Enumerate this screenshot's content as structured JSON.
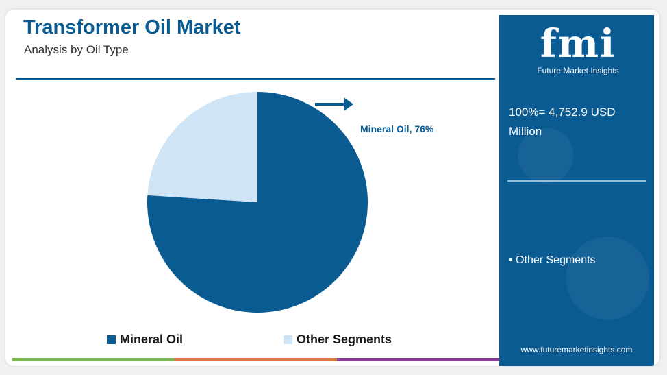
{
  "header": {
    "title": "Transformer Oil Market",
    "subtitle": "Analysis by Oil Type"
  },
  "chart_data": {
    "type": "pie",
    "title": "Transformer Oil Market",
    "subtitle": "Analysis by Oil Type",
    "slices": [
      {
        "label": "Mineral Oil",
        "value": 76,
        "color": "#0b5b93"
      },
      {
        "label": "Other Segments",
        "value": 24,
        "color": "#cfe4f5"
      }
    ],
    "annotation": "Mineral Oil, 76%",
    "legend_position": "bottom"
  },
  "legend": {
    "items": [
      {
        "label": "Mineral Oil",
        "color": "#0b5b93"
      },
      {
        "label": "Other Segments",
        "color": "#cfe4f5"
      }
    ]
  },
  "sidebar": {
    "logo_text": "fmi",
    "logo_subtitle": "Future Market Insights",
    "total_label": "100%= 4,752.9 USD Million",
    "bullet": "• Other Segments",
    "url": "www.futuremarketinsights.com"
  },
  "colors": {
    "brand": "#0b5b93",
    "light": "#cfe4f5",
    "bottom_bar": [
      "#7ab648",
      "#e0743a",
      "#8b3f99"
    ]
  }
}
